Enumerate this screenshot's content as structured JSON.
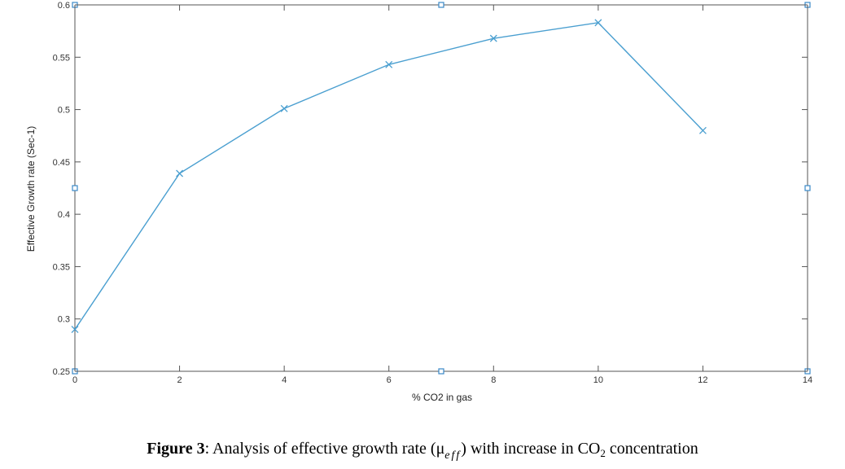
{
  "chart_data": {
    "type": "line",
    "xlabel": "% CO2 in gas",
    "ylabel": "Effective Growth rate (Sec-1)",
    "xlim": [
      0,
      14
    ],
    "ylim": [
      0.25,
      0.6
    ],
    "xticks": [
      0,
      2,
      4,
      6,
      8,
      10,
      12,
      14
    ],
    "yticks": [
      0.25,
      0.3,
      0.35,
      0.4,
      0.45,
      0.5,
      0.55,
      0.6
    ],
    "xtick_labels": [
      "0",
      "2",
      "4",
      "6",
      "8",
      "10",
      "12",
      "14"
    ],
    "ytick_labels": [
      "0.25",
      "0.3",
      "0.35",
      "0.4",
      "0.45",
      "0.5",
      "0.55",
      "0.6"
    ],
    "grid": false,
    "series": [
      {
        "x": [
          0,
          2,
          4,
          6,
          8,
          10,
          12
        ],
        "y": [
          0.29,
          0.439,
          0.501,
          0.543,
          0.568,
          0.583,
          0.48
        ],
        "marker": "x",
        "color": "#4a9fd0"
      }
    ]
  },
  "caption": {
    "label": "Figure 3",
    "text_1": ": Analysis of effective growth rate (μ",
    "subscript_eff": "eff",
    "text_2": ") with increase in CO",
    "subscript_2": "2",
    "text_3": " concentration"
  }
}
